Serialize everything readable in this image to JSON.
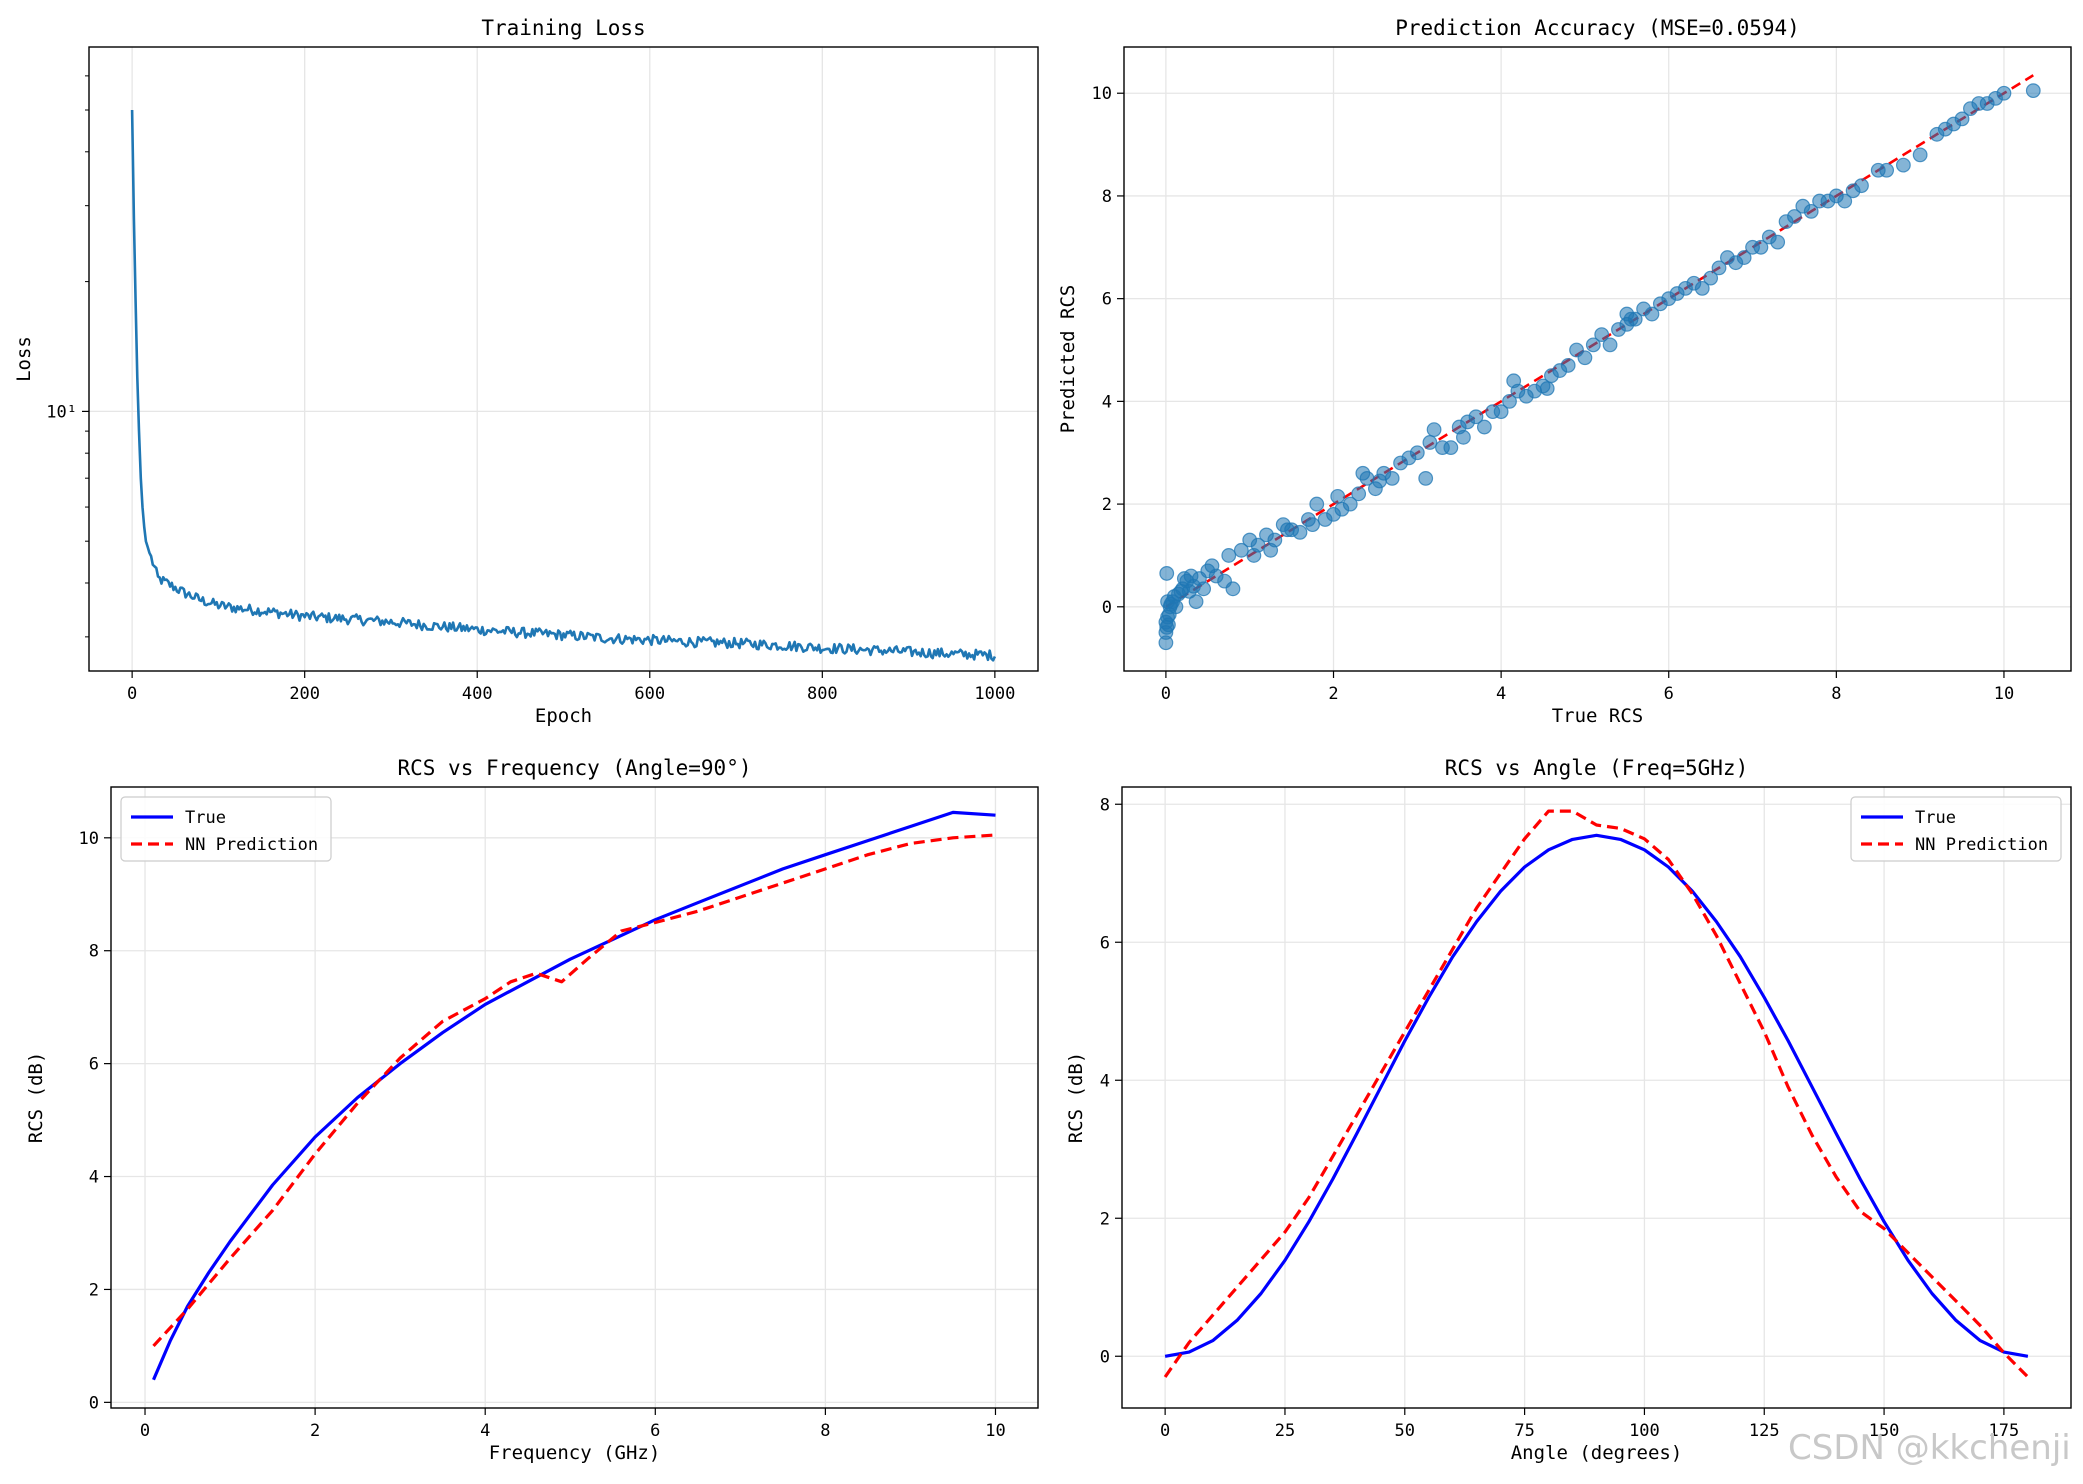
{
  "watermark": "CSDN @kkchenji",
  "colors": {
    "loss_line": "#1f77b4",
    "scatter": "#1f77b4",
    "true_line": "#0000ff",
    "pred_line": "#ff0000",
    "grid": "#e6e6e6"
  },
  "chart_data": [
    {
      "type": "line",
      "title": "Training Loss",
      "xlabel": "Epoch",
      "ylabel": "Loss",
      "yscale": "log",
      "xlim": [
        -50,
        1050
      ],
      "ylim": [
        2.5,
        70
      ],
      "xticks": [
        0,
        200,
        400,
        600,
        800,
        1000
      ],
      "xtick_labels": [
        "0",
        "200",
        "400",
        "600",
        "800",
        "1000"
      ],
      "yticks": [
        10
      ],
      "ytick_labels": [
        "10¹"
      ],
      "grid": true,
      "series": [
        {
          "name": "Loss",
          "x": [
            0,
            2,
            4,
            6,
            8,
            10,
            12,
            14,
            16,
            20,
            25,
            30,
            40,
            50,
            60,
            80,
            100,
            120,
            150,
            200,
            250,
            300,
            350,
            400,
            450,
            500,
            550,
            600,
            650,
            700,
            750,
            800,
            850,
            900,
            950,
            1000
          ],
          "y": [
            50,
            28,
            18,
            12,
            9,
            7,
            6,
            5.4,
            5.0,
            4.7,
            4.4,
            4.1,
            4.0,
            3.9,
            3.8,
            3.65,
            3.55,
            3.5,
            3.45,
            3.35,
            3.3,
            3.25,
            3.18,
            3.12,
            3.07,
            3.03,
            2.98,
            2.95,
            2.92,
            2.9,
            2.87,
            2.83,
            2.8,
            2.77,
            2.74,
            2.72
          ]
        }
      ]
    },
    {
      "type": "scatter",
      "title": "Prediction Accuracy (MSE=0.0594)",
      "xlabel": "True RCS",
      "ylabel": "Predicted RCS",
      "xlim": [
        -0.5,
        10.8
      ],
      "ylim": [
        -1.25,
        10.9
      ],
      "xticks": [
        0,
        2,
        4,
        6,
        8,
        10
      ],
      "xtick_labels": [
        "0",
        "2",
        "4",
        "6",
        "8",
        "10"
      ],
      "yticks": [
        0,
        2,
        4,
        6,
        8,
        10
      ],
      "ytick_labels": [
        "0",
        "2",
        "4",
        "6",
        "8",
        "10"
      ],
      "grid": true,
      "reference_line": {
        "x": [
          0,
          10.35
        ],
        "y": [
          0,
          10.35
        ]
      },
      "series": [
        {
          "name": "Predictions",
          "x": [
            0.0,
            0.0,
            0.0,
            0.01,
            0.01,
            0.02,
            0.02,
            0.03,
            0.04,
            0.05,
            0.06,
            0.08,
            0.1,
            0.12,
            0.15,
            0.18,
            0.2,
            0.22,
            0.25,
            0.28,
            0.3,
            0.33,
            0.36,
            0.4,
            0.45,
            0.5,
            0.55,
            0.6,
            0.7,
            0.75,
            0.8,
            0.9,
            1.0,
            1.05,
            1.1,
            1.2,
            1.25,
            1.3,
            1.4,
            1.45,
            1.5,
            1.6,
            1.7,
            1.75,
            1.8,
            1.9,
            2.0,
            2.05,
            2.1,
            2.2,
            2.3,
            2.35,
            2.4,
            2.5,
            2.55,
            2.6,
            2.7,
            2.8,
            2.9,
            3.0,
            3.1,
            3.15,
            3.2,
            3.3,
            3.4,
            3.5,
            3.55,
            3.6,
            3.7,
            3.8,
            3.9,
            4.0,
            4.1,
            4.15,
            4.2,
            4.3,
            4.4,
            4.5,
            4.55,
            4.6,
            4.7,
            4.8,
            4.9,
            5.0,
            5.1,
            5.2,
            5.3,
            5.4,
            5.5,
            5.5,
            5.55,
            5.6,
            5.7,
            5.8,
            5.9,
            6.0,
            6.1,
            6.2,
            6.3,
            6.4,
            6.5,
            6.6,
            6.7,
            6.8,
            6.9,
            7.0,
            7.1,
            7.2,
            7.3,
            7.4,
            7.5,
            7.6,
            7.7,
            7.8,
            7.9,
            8.0,
            8.1,
            8.2,
            8.3,
            8.5,
            8.6,
            8.8,
            9.0,
            9.2,
            9.3,
            9.4,
            9.5,
            9.6,
            9.7,
            9.8,
            9.9,
            10.0,
            10.35
          ],
          "y": [
            -0.7,
            -0.5,
            -0.3,
            0.65,
            -0.4,
            -0.2,
            0.1,
            -0.35,
            -0.15,
            0.0,
            0.05,
            0.1,
            0.2,
            0.0,
            0.25,
            0.3,
            0.35,
            0.55,
            0.5,
            0.3,
            0.6,
            0.4,
            0.1,
            0.55,
            0.35,
            0.7,
            0.8,
            0.6,
            0.5,
            1.0,
            0.35,
            1.1,
            1.3,
            1.0,
            1.2,
            1.4,
            1.1,
            1.3,
            1.6,
            1.5,
            1.5,
            1.45,
            1.7,
            1.6,
            2.0,
            1.7,
            1.8,
            2.15,
            1.9,
            2.0,
            2.2,
            2.6,
            2.5,
            2.3,
            2.45,
            2.6,
            2.5,
            2.8,
            2.9,
            3.0,
            2.5,
            3.2,
            3.45,
            3.1,
            3.1,
            3.5,
            3.3,
            3.6,
            3.7,
            3.5,
            3.8,
            3.8,
            4.0,
            4.4,
            4.2,
            4.1,
            4.2,
            4.3,
            4.25,
            4.5,
            4.6,
            4.7,
            5.0,
            4.85,
            5.1,
            5.3,
            5.1,
            5.4,
            5.5,
            5.7,
            5.6,
            5.6,
            5.8,
            5.7,
            5.9,
            6.0,
            6.1,
            6.2,
            6.3,
            6.2,
            6.4,
            6.6,
            6.8,
            6.7,
            6.8,
            7.0,
            7.0,
            7.2,
            7.1,
            7.5,
            7.6,
            7.8,
            7.7,
            7.9,
            7.9,
            8.0,
            7.9,
            8.1,
            8.2,
            8.5,
            8.5,
            8.6,
            8.8,
            9.2,
            9.3,
            9.4,
            9.5,
            9.7,
            9.8,
            9.8,
            9.9,
            10.0,
            10.05
          ]
        }
      ]
    },
    {
      "type": "line",
      "title": "RCS vs Frequency (Angle=90°)",
      "xlabel": "Frequency (GHz)",
      "ylabel": "RCS (dB)",
      "xlim": [
        -0.4,
        10.5
      ],
      "ylim": [
        -0.1,
        10.9
      ],
      "xticks": [
        0,
        2,
        4,
        6,
        8,
        10
      ],
      "xtick_labels": [
        "0",
        "2",
        "4",
        "6",
        "8",
        "10"
      ],
      "yticks": [
        0,
        2,
        4,
        6,
        8,
        10
      ],
      "ytick_labels": [
        "0",
        "2",
        "4",
        "6",
        "8",
        "10"
      ],
      "grid": true,
      "legend": "upper left",
      "series": [
        {
          "name": "True",
          "x": [
            0.1,
            0.3,
            0.5,
            0.75,
            1.0,
            1.5,
            2.0,
            2.5,
            3.0,
            3.5,
            4.0,
            4.5,
            5.0,
            5.5,
            6.0,
            6.5,
            7.0,
            7.5,
            8.0,
            8.5,
            9.0,
            9.5,
            10.0
          ],
          "y": [
            0.4,
            1.1,
            1.7,
            2.3,
            2.85,
            3.85,
            4.7,
            5.4,
            6.0,
            6.55,
            7.05,
            7.45,
            7.85,
            8.2,
            8.55,
            8.85,
            9.15,
            9.45,
            9.7,
            9.95,
            10.2,
            10.45,
            10.4
          ]
        },
        {
          "name": "NN Prediction",
          "x": [
            0.1,
            0.5,
            1.0,
            1.5,
            2.0,
            2.5,
            3.0,
            3.5,
            4.0,
            4.3,
            4.6,
            4.9,
            5.2,
            5.6,
            6.0,
            6.5,
            7.0,
            7.5,
            8.0,
            8.5,
            9.0,
            9.5,
            10.0
          ],
          "y": [
            1.0,
            1.65,
            2.55,
            3.4,
            4.4,
            5.3,
            6.1,
            6.75,
            7.15,
            7.45,
            7.6,
            7.45,
            7.85,
            8.35,
            8.5,
            8.7,
            8.95,
            9.2,
            9.45,
            9.7,
            9.9,
            10.0,
            10.05
          ]
        }
      ]
    },
    {
      "type": "line",
      "title": "RCS vs Angle (Freq=5GHz)",
      "xlabel": "Angle (degrees)",
      "ylabel": "RCS (dB)",
      "xlim": [
        -9,
        189
      ],
      "ylim": [
        -0.75,
        8.25
      ],
      "xticks": [
        0,
        25,
        50,
        75,
        100,
        125,
        150,
        175
      ],
      "xtick_labels": [
        "0",
        "25",
        "50",
        "75",
        "100",
        "125",
        "150",
        "175"
      ],
      "yticks": [
        0,
        2,
        4,
        6,
        8
      ],
      "ytick_labels": [
        "0",
        "2",
        "4",
        "6",
        "8"
      ],
      "grid": true,
      "legend": "upper right",
      "series": [
        {
          "name": "True",
          "x": [
            0,
            5,
            10,
            15,
            20,
            25,
            30,
            35,
            40,
            45,
            50,
            55,
            60,
            65,
            70,
            75,
            80,
            85,
            90,
            95,
            100,
            105,
            110,
            115,
            120,
            125,
            130,
            135,
            140,
            145,
            150,
            155,
            160,
            165,
            170,
            175,
            180
          ],
          "y": [
            0.0,
            0.06,
            0.23,
            0.52,
            0.91,
            1.39,
            1.95,
            2.57,
            3.23,
            3.9,
            4.57,
            5.2,
            5.79,
            6.3,
            6.74,
            7.09,
            7.34,
            7.49,
            7.55,
            7.49,
            7.34,
            7.09,
            6.74,
            6.3,
            5.79,
            5.2,
            4.57,
            3.9,
            3.23,
            2.57,
            1.95,
            1.39,
            0.91,
            0.52,
            0.23,
            0.06,
            0.0
          ]
        },
        {
          "name": "NN Prediction",
          "x": [
            0,
            5,
            10,
            15,
            20,
            25,
            30,
            35,
            40,
            45,
            50,
            55,
            60,
            65,
            70,
            75,
            80,
            85,
            90,
            95,
            100,
            105,
            110,
            115,
            120,
            125,
            130,
            135,
            140,
            145,
            150,
            155,
            160,
            165,
            170,
            175,
            180
          ],
          "y": [
            -0.3,
            0.2,
            0.6,
            1.0,
            1.4,
            1.8,
            2.3,
            2.9,
            3.5,
            4.1,
            4.7,
            5.3,
            5.9,
            6.5,
            7.0,
            7.5,
            7.9,
            7.9,
            7.7,
            7.65,
            7.5,
            7.2,
            6.7,
            6.1,
            5.4,
            4.7,
            3.9,
            3.2,
            2.6,
            2.1,
            1.85,
            1.5,
            1.15,
            0.8,
            0.45,
            0.05,
            -0.3
          ]
        }
      ]
    }
  ]
}
